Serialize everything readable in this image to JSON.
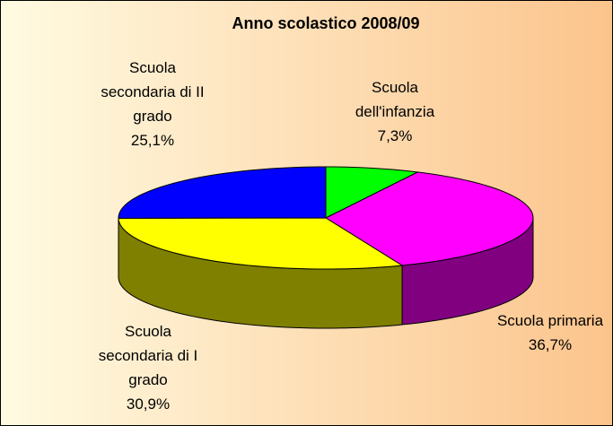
{
  "chart_data": {
    "type": "pie",
    "title": "Anno scolastico 2008/09",
    "categories": [
      "Scuola dell'infanzia",
      "Scuola primaria",
      "Scuola secondaria di I grado",
      "Scuola secondaria di II grado"
    ],
    "values": [
      7.3,
      36.7,
      30.9,
      25.1
    ],
    "value_labels": [
      "7,3%",
      "36,7%",
      "30,9%",
      "25,1%"
    ],
    "colors": [
      "#00ff00",
      "#ff00ff",
      "#ffff00",
      "#0000ff"
    ],
    "side_colors": [
      "#008000",
      "#800080",
      "#808000",
      "#000080"
    ]
  }
}
